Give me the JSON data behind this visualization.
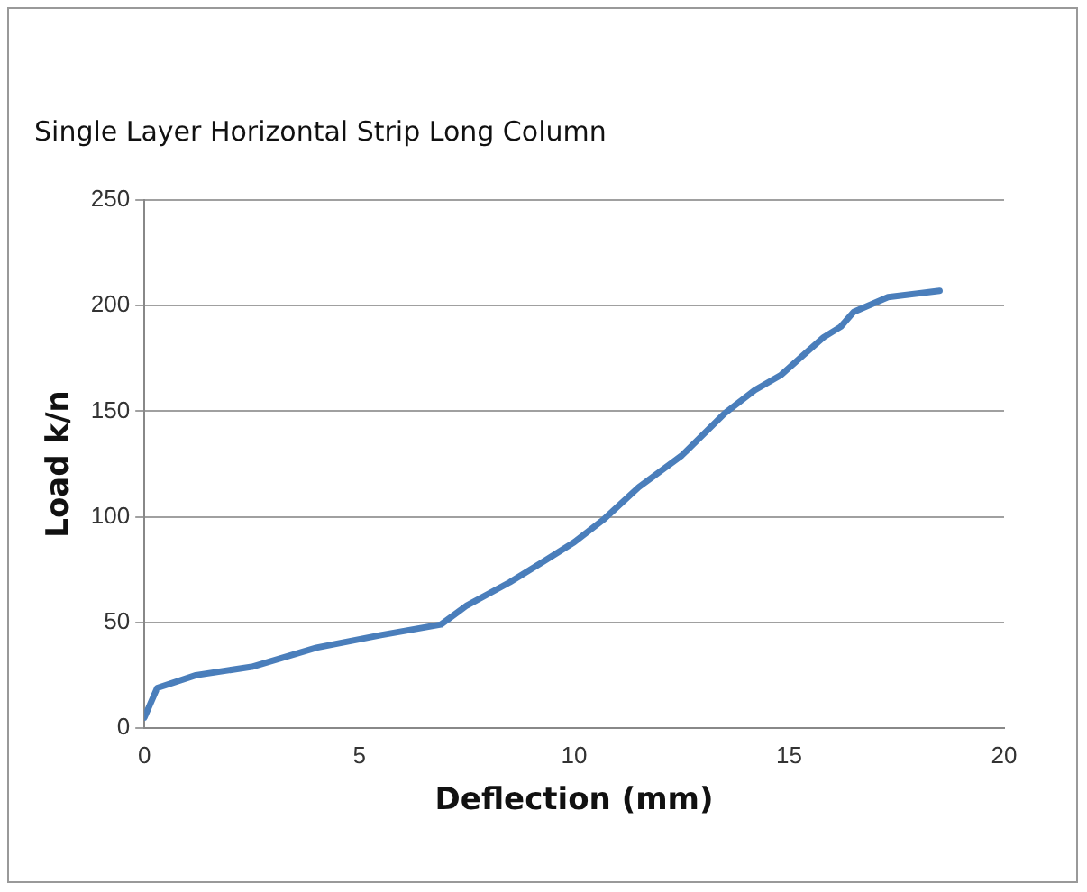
{
  "chart_data": {
    "type": "line",
    "title": "Single Layer Horizontal Strip Long Column",
    "xlabel": "Deflection (mm)",
    "ylabel": "Load k/n",
    "x": [
      0,
      0.3,
      1.2,
      2.5,
      4,
      5.5,
      6.9,
      7.5,
      8.5,
      9.3,
      10,
      10.7,
      11.5,
      12.5,
      13,
      13.5,
      14.2,
      14.8,
      15.3,
      15.8,
      16.2,
      16.5,
      17.3,
      18.5
    ],
    "series": [
      {
        "color": "#4a7ebb",
        "values": [
          5,
          19,
          25,
          29,
          38,
          44,
          49,
          58,
          69,
          79,
          88,
          99,
          114,
          129,
          139,
          149,
          160,
          167,
          176,
          185,
          190,
          197,
          204,
          207
        ]
      }
    ],
    "xlim": [
      0,
      20
    ],
    "xticks": [
      0,
      5,
      10,
      15,
      20
    ],
    "ylim": [
      0,
      250
    ],
    "yticks": [
      0,
      50,
      100,
      150,
      200,
      250
    ],
    "grid": "y",
    "legend": false,
    "marker": "none",
    "line_style": "solid"
  }
}
